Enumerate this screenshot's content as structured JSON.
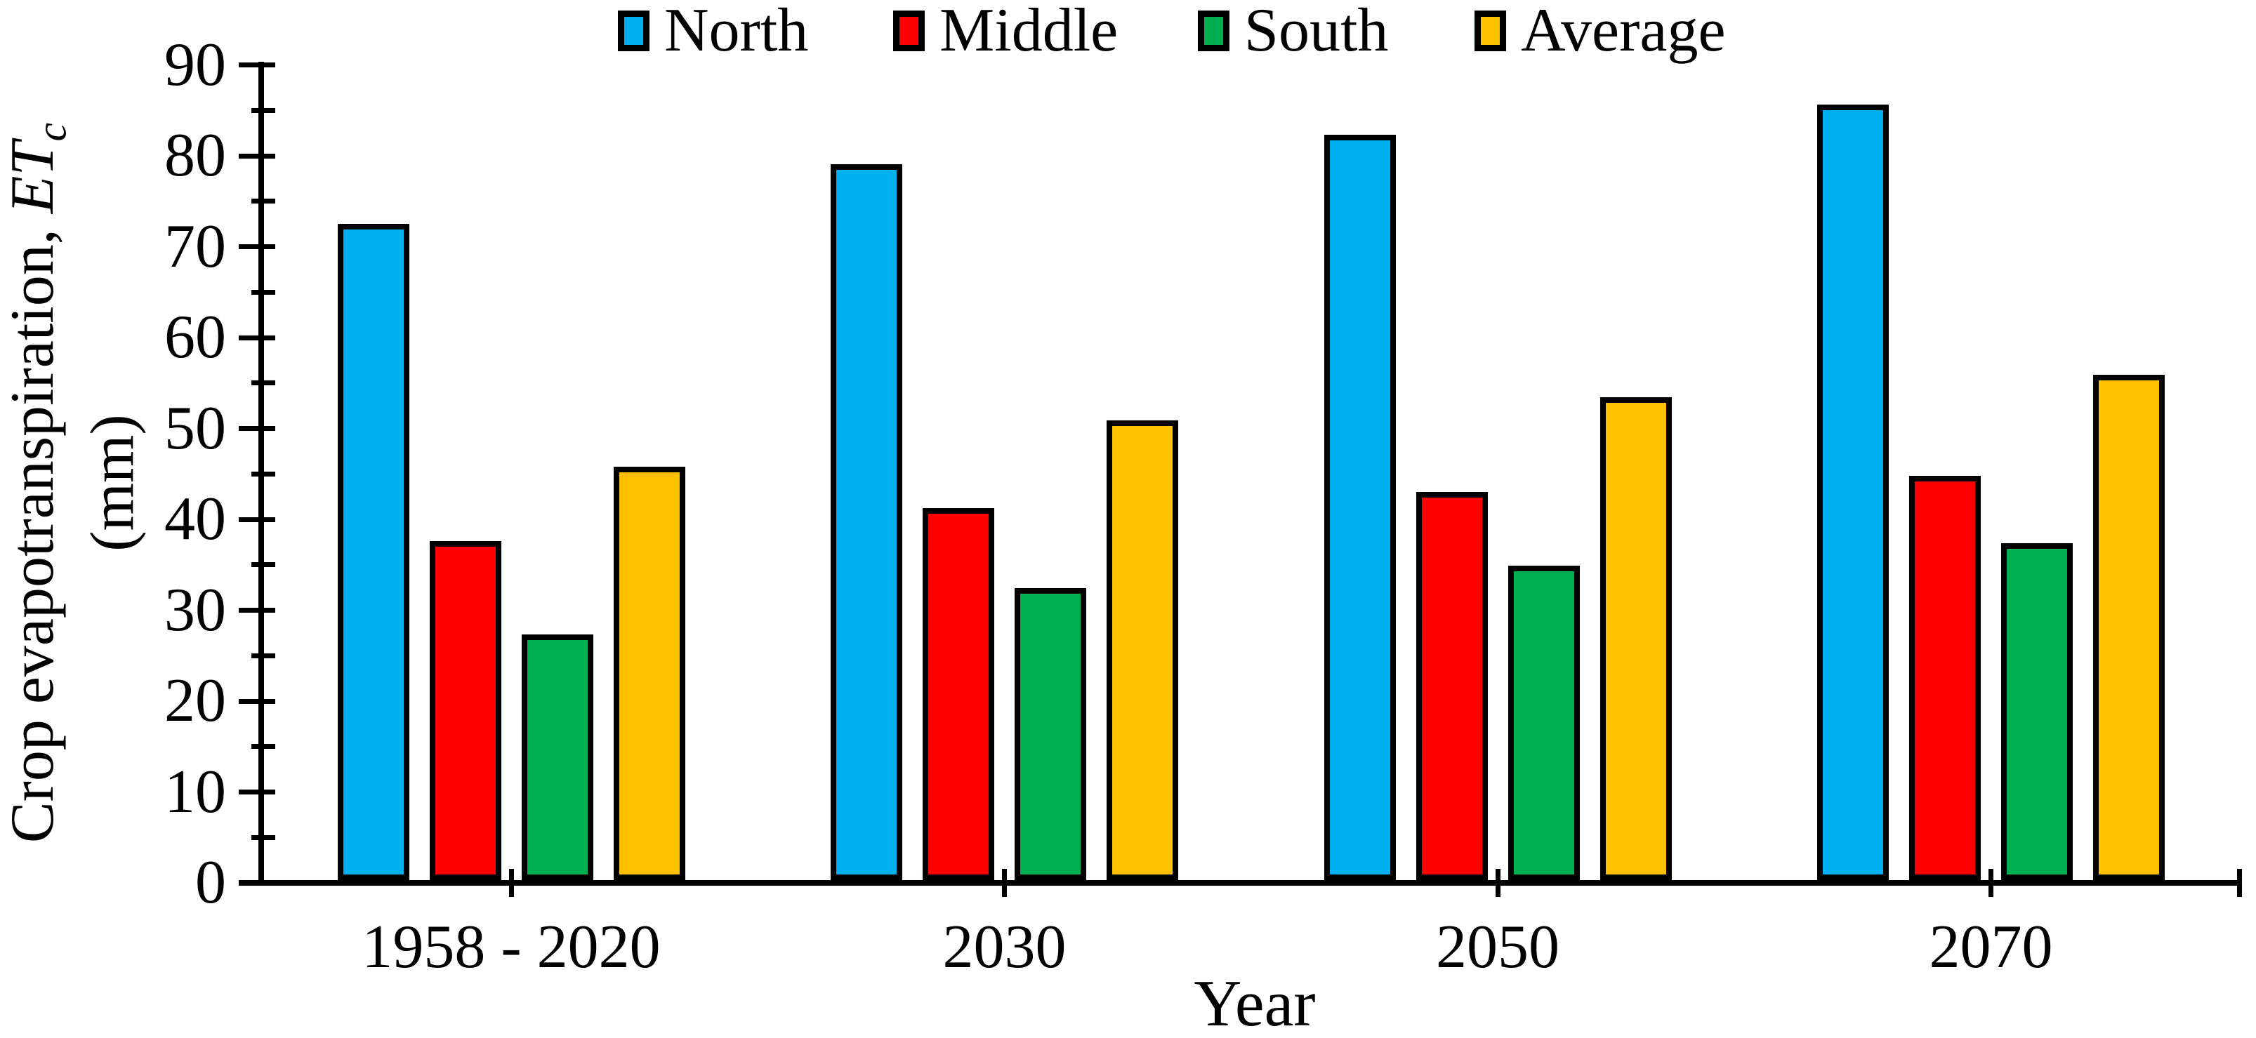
{
  "chart_data": {
    "type": "bar",
    "title": "",
    "categories": [
      "1958 - 2020",
      "2030",
      "2050",
      "2070"
    ],
    "series": [
      {
        "name": "North",
        "color": "#00B0F0",
        "values": [
          72.2,
          78.8,
          82.0,
          85.3
        ]
      },
      {
        "name": "Middle",
        "color": "#FF0000",
        "values": [
          37.3,
          40.9,
          42.7,
          44.5
        ]
      },
      {
        "name": "South",
        "color": "#00B050",
        "values": [
          27.0,
          32.1,
          34.6,
          37.1
        ]
      },
      {
        "name": "Average",
        "color": "#FFC000",
        "values": [
          45.5,
          50.6,
          53.1,
          55.6
        ]
      }
    ],
    "xlabel": "Year",
    "ylabel": "Crop evapotranspiration, ETc (mm)",
    "ylim": [
      0,
      90
    ],
    "y_major_ticks": [
      0,
      10,
      20,
      30,
      40,
      50,
      60,
      70,
      80,
      90
    ],
    "y_minor_tick_step": 5,
    "grid": "off",
    "legend_position": "top",
    "bar_border_color": "#000000"
  },
  "legend": {
    "items": [
      {
        "label": "North",
        "color": "#00B0F0"
      },
      {
        "label": "Middle",
        "color": "#FF0000"
      },
      {
        "label": "South",
        "color": "#00B050"
      },
      {
        "label": "Average",
        "color": "#FFC000"
      }
    ]
  },
  "y_axis": {
    "tick_labels": [
      "0",
      "10",
      "20",
      "30",
      "40",
      "50",
      "60",
      "70",
      "80",
      "90"
    ],
    "title_main": "Crop evapotranspiration, ",
    "title_symbol": "ET",
    "title_sub": "c",
    "title_unit": "(mm)"
  },
  "x_axis": {
    "labels": [
      "1958 - 2020",
      "2030",
      "2050",
      "2070"
    ],
    "title": "Year"
  }
}
